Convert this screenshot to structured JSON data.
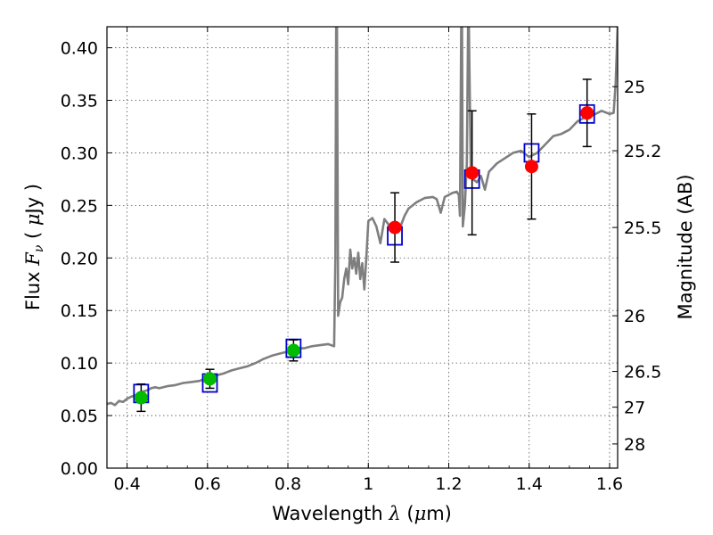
{
  "chart_data": {
    "type": "scatter",
    "title": "",
    "xlabel": "Wavelength  λ (μm)",
    "ylabel": "Flux  Fν  ( μJy )",
    "ylabel_right": "Magnitude (AB)",
    "xlim": [
      0.35,
      1.62
    ],
    "ylim": [
      0.0,
      0.42
    ],
    "grid": true,
    "legend": "none",
    "x_ticks": [
      {
        "value": 0.4,
        "label": "0.4"
      },
      {
        "value": 0.6,
        "label": "0.6"
      },
      {
        "value": 0.8,
        "label": "0.8"
      },
      {
        "value": 1.0,
        "label": "1"
      },
      {
        "value": 1.2,
        "label": "1.2"
      },
      {
        "value": 1.4,
        "label": "1.4"
      },
      {
        "value": 1.6,
        "label": "1.6"
      }
    ],
    "y_ticks": [
      {
        "value": 0.0,
        "label": "0.00"
      },
      {
        "value": 0.05,
        "label": "0.05"
      },
      {
        "value": 0.1,
        "label": "0.10"
      },
      {
        "value": 0.15,
        "label": "0.15"
      },
      {
        "value": 0.2,
        "label": "0.20"
      },
      {
        "value": 0.25,
        "label": "0.25"
      },
      {
        "value": 0.3,
        "label": "0.30"
      },
      {
        "value": 0.35,
        "label": "0.35"
      },
      {
        "value": 0.4,
        "label": "0.40"
      }
    ],
    "right_ticks": [
      {
        "flux": 0.363,
        "label": "25"
      },
      {
        "flux": 0.302,
        "label": "25.2"
      },
      {
        "flux": 0.229,
        "label": "25.5"
      },
      {
        "flux": 0.145,
        "label": "26"
      },
      {
        "flux": 0.092,
        "label": "26.5"
      },
      {
        "flux": 0.058,
        "label": "27"
      },
      {
        "flux": 0.023,
        "label": "28"
      }
    ],
    "series": [
      {
        "kind": "model-spectrum",
        "color": "#7f7f7f",
        "points": [
          [
            0.35,
            0.061
          ],
          [
            0.36,
            0.062
          ],
          [
            0.37,
            0.06
          ],
          [
            0.38,
            0.064
          ],
          [
            0.39,
            0.063
          ],
          [
            0.4,
            0.066
          ],
          [
            0.41,
            0.068
          ],
          [
            0.42,
            0.069
          ],
          [
            0.43,
            0.072
          ],
          [
            0.44,
            0.073
          ],
          [
            0.45,
            0.074
          ],
          [
            0.46,
            0.076
          ],
          [
            0.47,
            0.077
          ],
          [
            0.48,
            0.076
          ],
          [
            0.5,
            0.078
          ],
          [
            0.52,
            0.079
          ],
          [
            0.54,
            0.081
          ],
          [
            0.56,
            0.082
          ],
          [
            0.58,
            0.083
          ],
          [
            0.6,
            0.086
          ],
          [
            0.62,
            0.088
          ],
          [
            0.64,
            0.09
          ],
          [
            0.66,
            0.093
          ],
          [
            0.68,
            0.095
          ],
          [
            0.7,
            0.097
          ],
          [
            0.72,
            0.1
          ],
          [
            0.74,
            0.104
          ],
          [
            0.76,
            0.107
          ],
          [
            0.78,
            0.109
          ],
          [
            0.8,
            0.111
          ],
          [
            0.82,
            0.114
          ],
          [
            0.84,
            0.114
          ],
          [
            0.86,
            0.116
          ],
          [
            0.88,
            0.117
          ],
          [
            0.9,
            0.118
          ],
          [
            0.915,
            0.116
          ],
          [
            0.918,
            0.2
          ],
          [
            0.92,
            0.42
          ],
          [
            0.922,
            0.42
          ],
          [
            0.925,
            0.145
          ],
          [
            0.93,
            0.158
          ],
          [
            0.935,
            0.162
          ],
          [
            0.94,
            0.18
          ],
          [
            0.945,
            0.19
          ],
          [
            0.95,
            0.175
          ],
          [
            0.955,
            0.208
          ],
          [
            0.96,
            0.19
          ],
          [
            0.965,
            0.2
          ],
          [
            0.97,
            0.185
          ],
          [
            0.975,
            0.205
          ],
          [
            0.98,
            0.18
          ],
          [
            0.985,
            0.195
          ],
          [
            0.99,
            0.17
          ],
          [
            0.995,
            0.2
          ],
          [
            1.0,
            0.235
          ],
          [
            1.01,
            0.238
          ],
          [
            1.02,
            0.23
          ],
          [
            1.03,
            0.214
          ],
          [
            1.04,
            0.237
          ],
          [
            1.05,
            0.232
          ],
          [
            1.06,
            0.225
          ],
          [
            1.07,
            0.233
          ],
          [
            1.08,
            0.23
          ],
          [
            1.09,
            0.24
          ],
          [
            1.1,
            0.247
          ],
          [
            1.11,
            0.25
          ],
          [
            1.12,
            0.253
          ],
          [
            1.14,
            0.257
          ],
          [
            1.16,
            0.258
          ],
          [
            1.17,
            0.256
          ],
          [
            1.18,
            0.243
          ],
          [
            1.19,
            0.258
          ],
          [
            1.2,
            0.26
          ],
          [
            1.21,
            0.262
          ],
          [
            1.22,
            0.263
          ],
          [
            1.225,
            0.26
          ],
          [
            1.228,
            0.24
          ],
          [
            1.231,
            0.42
          ],
          [
            1.233,
            0.42
          ],
          [
            1.235,
            0.23
          ],
          [
            1.24,
            0.25
          ],
          [
            1.245,
            0.29
          ],
          [
            1.248,
            0.42
          ],
          [
            1.25,
            0.42
          ],
          [
            1.255,
            0.28
          ],
          [
            1.26,
            0.275
          ],
          [
            1.27,
            0.272
          ],
          [
            1.28,
            0.278
          ],
          [
            1.29,
            0.265
          ],
          [
            1.3,
            0.282
          ],
          [
            1.32,
            0.29
          ],
          [
            1.34,
            0.295
          ],
          [
            1.36,
            0.3
          ],
          [
            1.38,
            0.302
          ],
          [
            1.4,
            0.296
          ],
          [
            1.42,
            0.3
          ],
          [
            1.44,
            0.308
          ],
          [
            1.46,
            0.316
          ],
          [
            1.48,
            0.318
          ],
          [
            1.5,
            0.322
          ],
          [
            1.52,
            0.33
          ],
          [
            1.54,
            0.334
          ],
          [
            1.56,
            0.336
          ],
          [
            1.58,
            0.34
          ],
          [
            1.6,
            0.337
          ],
          [
            1.61,
            0.338
          ],
          [
            1.615,
            0.365
          ],
          [
            1.62,
            0.42
          ]
        ]
      },
      {
        "kind": "model-photometry",
        "marker": "open-square",
        "color": "#0000cc",
        "points": [
          {
            "x": 0.435,
            "y": 0.071
          },
          {
            "x": 0.606,
            "y": 0.081
          },
          {
            "x": 0.814,
            "y": 0.114
          },
          {
            "x": 1.066,
            "y": 0.221
          },
          {
            "x": 1.258,
            "y": 0.275
          },
          {
            "x": 1.406,
            "y": 0.3
          },
          {
            "x": 1.544,
            "y": 0.337
          }
        ]
      },
      {
        "kind": "observed",
        "marker": "filled-circle",
        "points": [
          {
            "x": 0.435,
            "y": 0.067,
            "err": 0.013,
            "color": "#00bb00"
          },
          {
            "x": 0.606,
            "y": 0.085,
            "err": 0.009,
            "color": "#00bb00"
          },
          {
            "x": 0.814,
            "y": 0.112,
            "err": 0.01,
            "color": "#00bb00"
          },
          {
            "x": 1.066,
            "y": 0.229,
            "err": 0.033,
            "color": "#ff0000"
          },
          {
            "x": 1.258,
            "y": 0.281,
            "err": 0.059,
            "color": "#ff0000"
          },
          {
            "x": 1.406,
            "y": 0.287,
            "err": 0.05,
            "color": "#ff0000"
          },
          {
            "x": 1.544,
            "y": 0.338,
            "err": 0.032,
            "color": "#ff0000"
          }
        ]
      }
    ]
  }
}
